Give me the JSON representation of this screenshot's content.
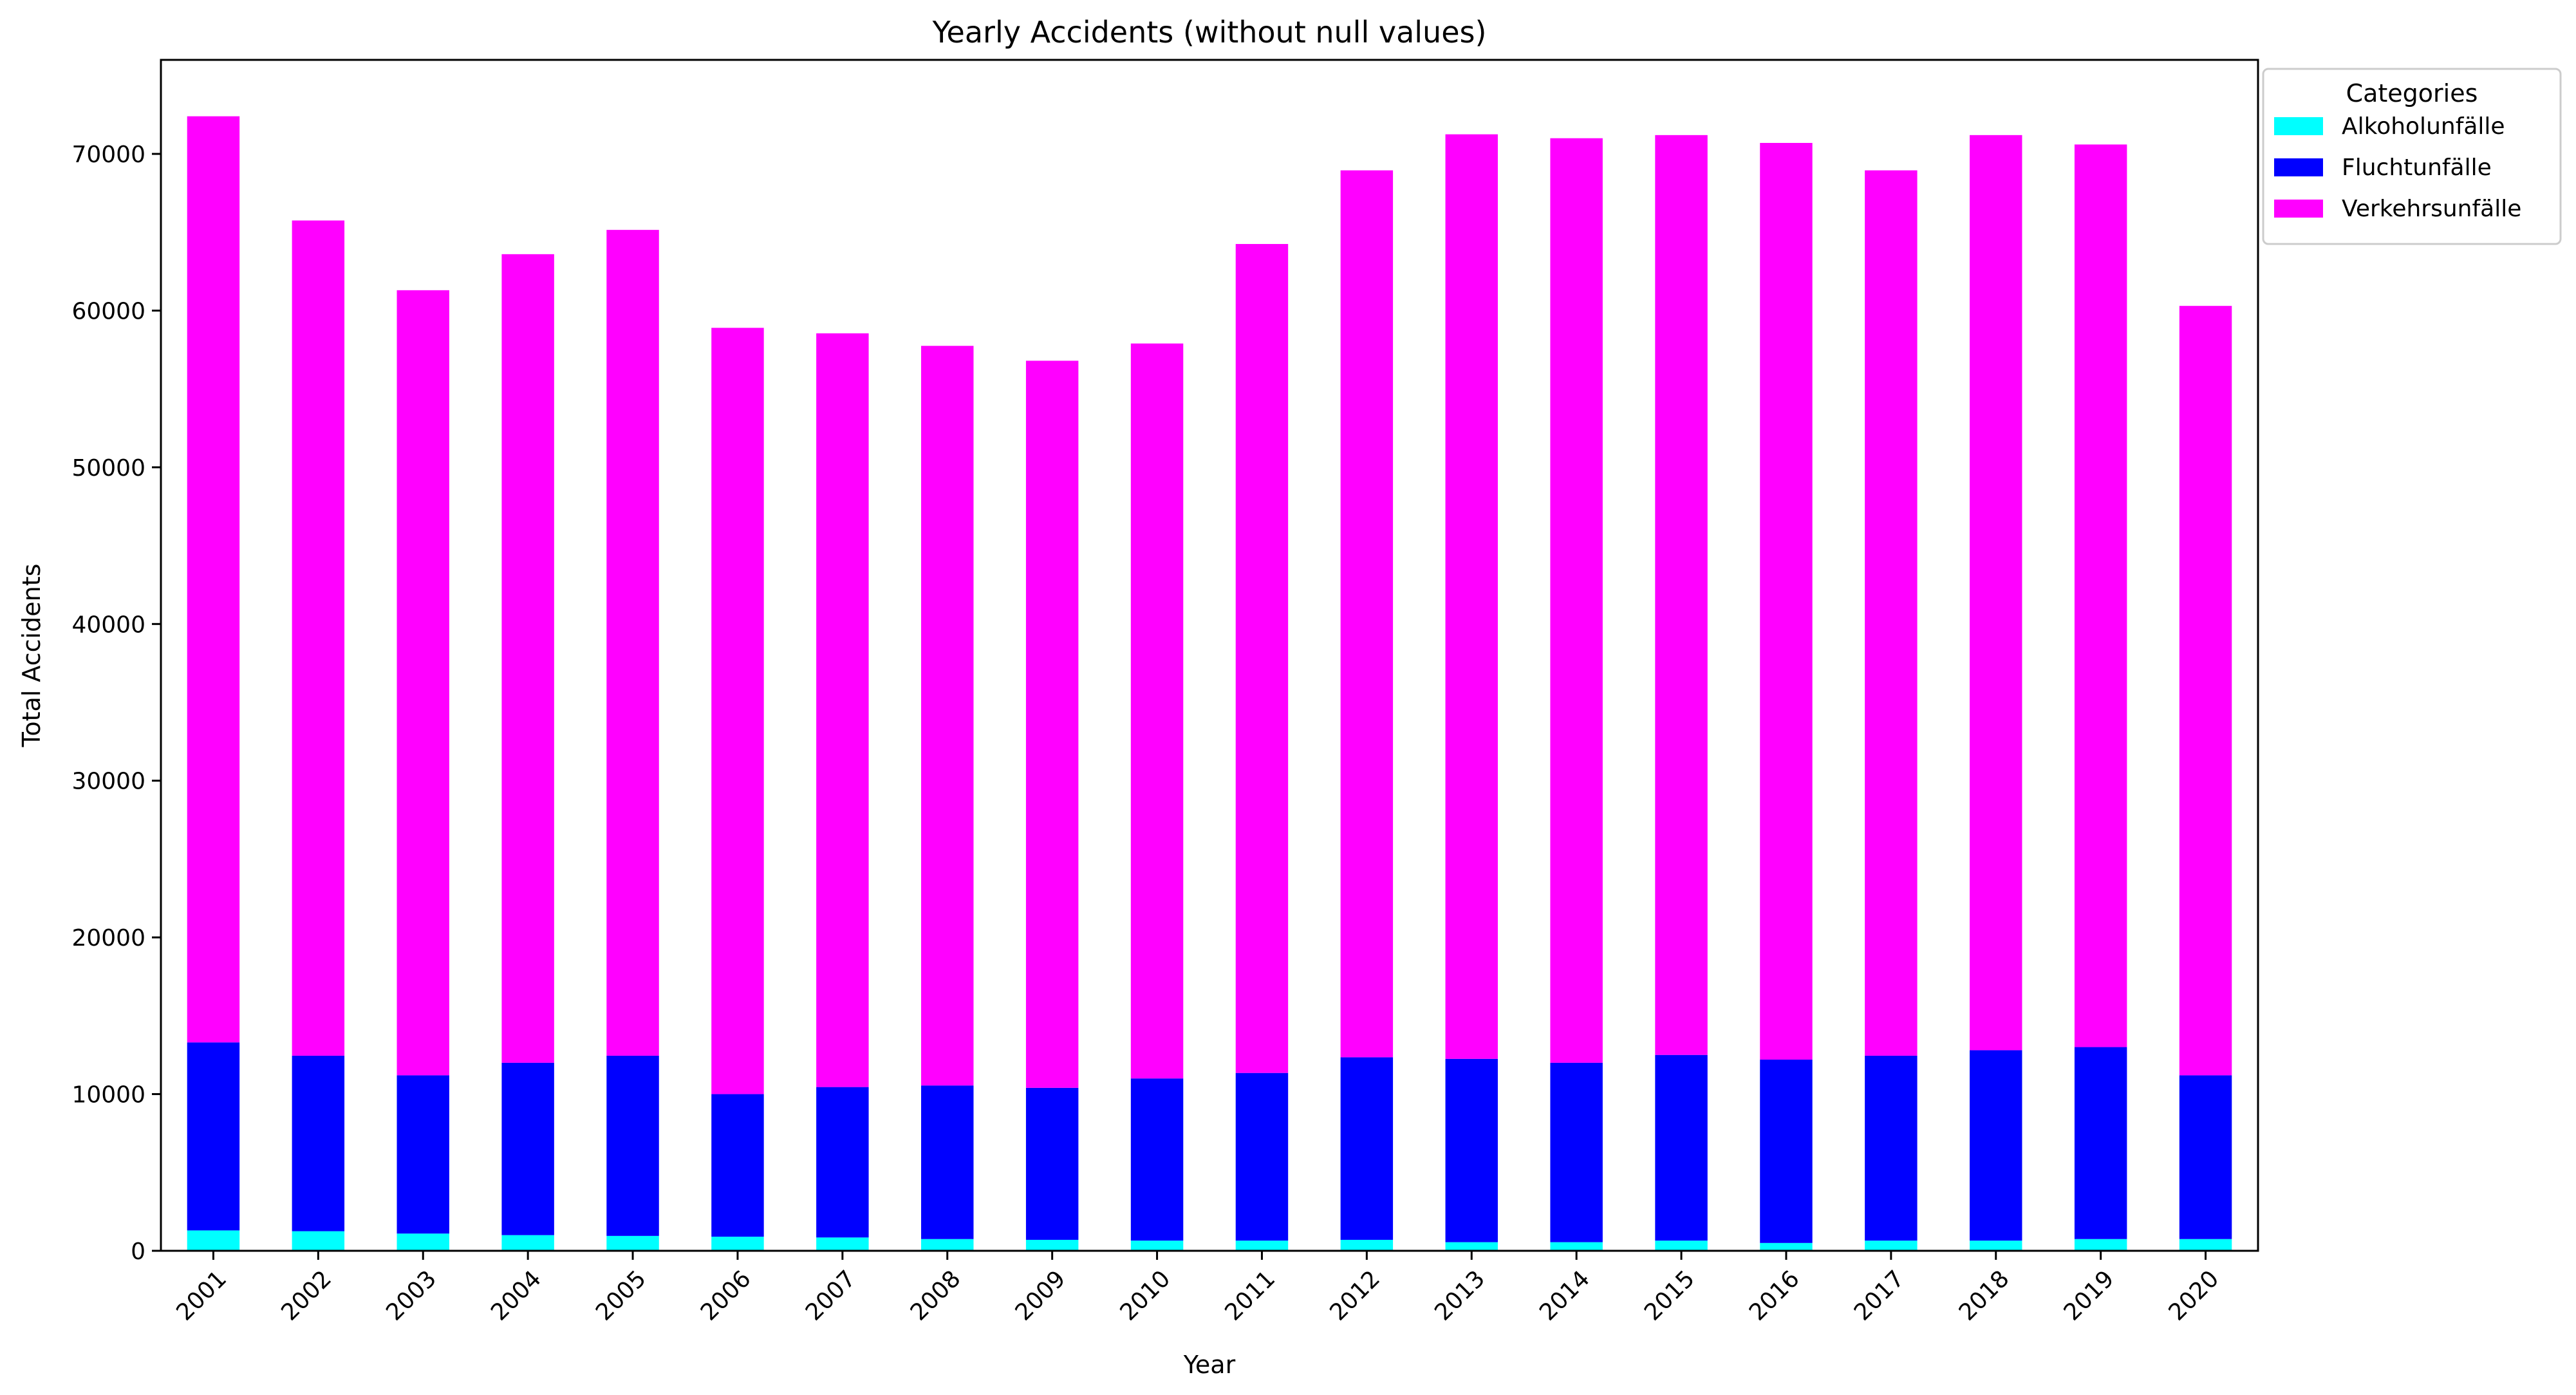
{
  "chart_data": {
    "type": "bar",
    "stacked": true,
    "title": "Yearly Accidents (without null values)",
    "xlabel": "Year",
    "ylabel": "Total Accidents",
    "ylim": [
      0,
      76000
    ],
    "yticks": [
      0,
      10000,
      20000,
      30000,
      40000,
      50000,
      60000,
      70000
    ],
    "grid": false,
    "legend": {
      "title": "Categories",
      "placement": "upper-right-outside"
    },
    "categories": [
      "2001",
      "2002",
      "2003",
      "2004",
      "2005",
      "2006",
      "2007",
      "2008",
      "2009",
      "2010",
      "2011",
      "2012",
      "2013",
      "2014",
      "2015",
      "2016",
      "2017",
      "2018",
      "2019",
      "2020"
    ],
    "series": [
      {
        "name": "Alkoholunfälle",
        "color": "#00ffff",
        "values": [
          1300,
          1250,
          1100,
          1000,
          950,
          900,
          850,
          750,
          700,
          650,
          650,
          700,
          550,
          550,
          650,
          500,
          650,
          650,
          750,
          750
        ]
      },
      {
        "name": "Fluchtunfälle",
        "color": "#0000ff",
        "values": [
          12000,
          11200,
          10100,
          11000,
          11500,
          9100,
          9600,
          9800,
          9700,
          10350,
          10700,
          11650,
          11700,
          11450,
          11850,
          11700,
          11800,
          12150,
          12250,
          10450
        ]
      },
      {
        "name": "Verkehrsunfälle",
        "color": "#ff00ff",
        "values": [
          59100,
          53300,
          50100,
          51600,
          52700,
          48900,
          48100,
          47200,
          46400,
          46900,
          52900,
          56600,
          59000,
          59000,
          58700,
          58500,
          56500,
          58400,
          57600,
          49100
        ]
      }
    ]
  }
}
